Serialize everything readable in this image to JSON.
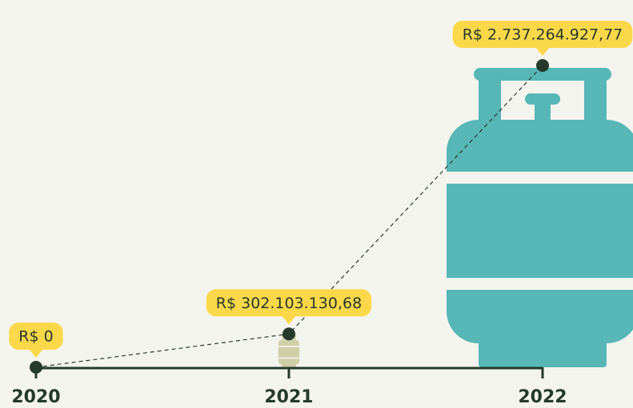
{
  "chart_data": {
    "type": "line",
    "categories": [
      "2020",
      "2021",
      "2022"
    ],
    "values": [
      0,
      302103130.68,
      2737264927.77
    ],
    "value_labels": [
      "R$ 0",
      "R$ 302.103.130,68",
      "R$ 2.737.264.927,77"
    ],
    "color": "#253a2b",
    "icon_colors": [
      "#cfcfa8",
      "#cfcfa8",
      "#57b6b6"
    ],
    "label_color": "#fbd84a"
  }
}
